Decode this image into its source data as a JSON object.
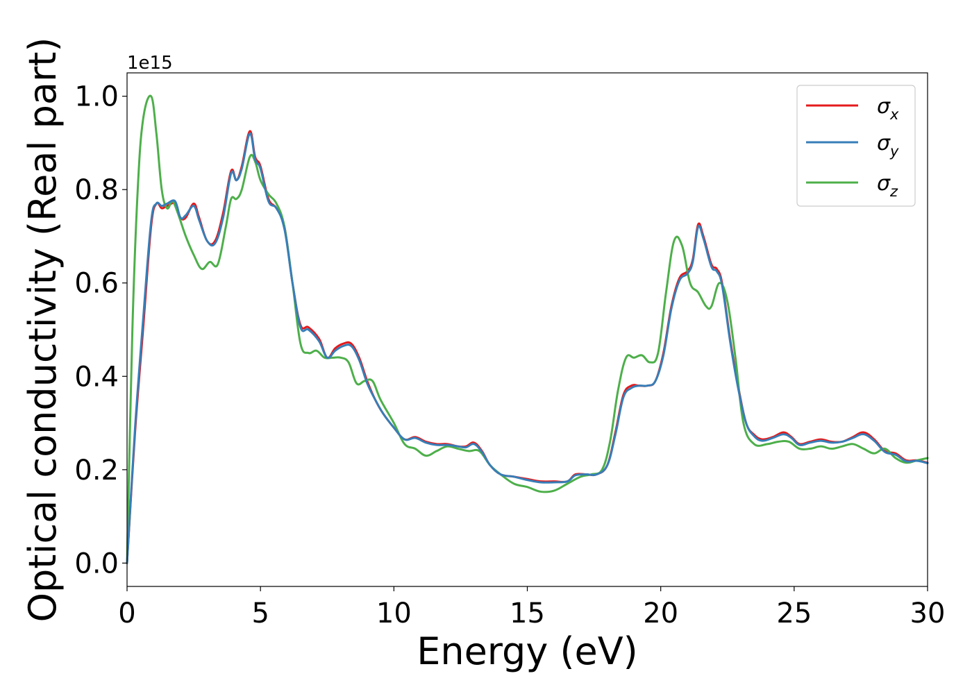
{
  "chart_data": {
    "type": "line",
    "xlabel": "Energy (eV)",
    "ylabel": "Optical conductivity (Real part)",
    "y_offset_label": "1e15",
    "xlim": [
      0,
      30
    ],
    "ylim": [
      -0.05,
      1.05
    ],
    "xticks": [
      0,
      5,
      10,
      15,
      20,
      25,
      30
    ],
    "xtick_labels": [
      "0",
      "5",
      "10",
      "15",
      "20",
      "25",
      "30"
    ],
    "yticks": [
      0.0,
      0.2,
      0.4,
      0.6,
      0.8,
      1.0
    ],
    "ytick_labels": [
      "0.0",
      "0.2",
      "0.4",
      "0.6",
      "0.8",
      "1.0"
    ],
    "grid": false,
    "legend": "top-right",
    "series": [
      {
        "name": "σx",
        "symbol": "σ",
        "subscript": "x",
        "color": "#e41a1c",
        "x": [
          0,
          0.3,
          0.6,
          0.9,
          1.1,
          1.3,
          1.5,
          1.8,
          2.0,
          2.2,
          2.5,
          2.7,
          3.0,
          3.3,
          3.6,
          3.9,
          4.1,
          4.3,
          4.6,
          4.8,
          5.0,
          5.3,
          5.6,
          5.9,
          6.2,
          6.5,
          6.8,
          7.2,
          7.5,
          7.8,
          8.1,
          8.4,
          8.7,
          9.0,
          9.3,
          9.6,
          10.0,
          10.4,
          10.8,
          11.2,
          11.6,
          12.0,
          12.4,
          12.7,
          13.0,
          13.3,
          13.6,
          14.0,
          14.5,
          15.0,
          15.5,
          16.0,
          16.5,
          16.8,
          17.2,
          17.6,
          18.0,
          18.3,
          18.6,
          18.9,
          19.2,
          19.5,
          19.8,
          20.1,
          20.4,
          20.7,
          21.0,
          21.2,
          21.4,
          21.6,
          21.9,
          22.1,
          22.3,
          22.6,
          22.9,
          23.2,
          23.5,
          23.8,
          24.2,
          24.6,
          24.9,
          25.2,
          25.6,
          26.0,
          26.4,
          26.8,
          27.2,
          27.6,
          28.0,
          28.4,
          28.8,
          29.2,
          29.6,
          30.0
        ],
        "values": [
          0.0,
          0.28,
          0.5,
          0.72,
          0.77,
          0.76,
          0.765,
          0.77,
          0.74,
          0.74,
          0.77,
          0.74,
          0.69,
          0.69,
          0.75,
          0.84,
          0.82,
          0.85,
          0.925,
          0.87,
          0.85,
          0.78,
          0.76,
          0.72,
          0.6,
          0.51,
          0.505,
          0.48,
          0.44,
          0.46,
          0.47,
          0.47,
          0.44,
          0.39,
          0.35,
          0.32,
          0.29,
          0.265,
          0.27,
          0.26,
          0.255,
          0.255,
          0.25,
          0.25,
          0.258,
          0.24,
          0.21,
          0.19,
          0.185,
          0.18,
          0.175,
          0.175,
          0.175,
          0.19,
          0.19,
          0.19,
          0.21,
          0.28,
          0.36,
          0.38,
          0.38,
          0.38,
          0.39,
          0.45,
          0.55,
          0.61,
          0.625,
          0.65,
          0.725,
          0.7,
          0.64,
          0.63,
          0.6,
          0.48,
          0.38,
          0.3,
          0.275,
          0.265,
          0.27,
          0.28,
          0.27,
          0.255,
          0.26,
          0.265,
          0.26,
          0.26,
          0.27,
          0.28,
          0.265,
          0.24,
          0.235,
          0.22,
          0.22,
          0.215
        ]
      },
      {
        "name": "σy",
        "symbol": "σ",
        "subscript": "y",
        "color": "#377eb8",
        "x": [
          0,
          0.3,
          0.6,
          0.9,
          1.1,
          1.3,
          1.5,
          1.8,
          2.0,
          2.2,
          2.5,
          2.7,
          3.0,
          3.3,
          3.6,
          3.9,
          4.1,
          4.3,
          4.6,
          4.8,
          5.0,
          5.3,
          5.6,
          5.9,
          6.2,
          6.5,
          6.8,
          7.2,
          7.5,
          7.8,
          8.1,
          8.4,
          8.7,
          9.0,
          9.3,
          9.6,
          10.0,
          10.4,
          10.8,
          11.2,
          11.6,
          12.0,
          12.4,
          12.7,
          13.0,
          13.3,
          13.6,
          14.0,
          14.5,
          15.0,
          15.5,
          16.0,
          16.5,
          16.8,
          17.2,
          17.6,
          18.0,
          18.3,
          18.6,
          18.9,
          19.2,
          19.5,
          19.8,
          20.1,
          20.4,
          20.7,
          21.0,
          21.2,
          21.4,
          21.6,
          21.9,
          22.1,
          22.3,
          22.6,
          22.9,
          23.2,
          23.5,
          23.8,
          24.2,
          24.6,
          24.9,
          25.2,
          25.6,
          26.0,
          26.4,
          26.8,
          27.2,
          27.6,
          28.0,
          28.4,
          28.8,
          29.2,
          29.6,
          30.0
        ],
        "values": [
          0.0,
          0.29,
          0.52,
          0.73,
          0.77,
          0.765,
          0.77,
          0.775,
          0.74,
          0.745,
          0.765,
          0.735,
          0.69,
          0.685,
          0.74,
          0.835,
          0.82,
          0.845,
          0.92,
          0.865,
          0.845,
          0.775,
          0.76,
          0.715,
          0.6,
          0.505,
          0.5,
          0.475,
          0.44,
          0.455,
          0.465,
          0.465,
          0.435,
          0.385,
          0.35,
          0.32,
          0.29,
          0.265,
          0.268,
          0.258,
          0.253,
          0.253,
          0.25,
          0.248,
          0.255,
          0.238,
          0.21,
          0.19,
          0.185,
          0.178,
          0.173,
          0.173,
          0.175,
          0.188,
          0.19,
          0.19,
          0.21,
          0.275,
          0.355,
          0.375,
          0.38,
          0.38,
          0.39,
          0.445,
          0.545,
          0.605,
          0.62,
          0.645,
          0.72,
          0.695,
          0.635,
          0.625,
          0.595,
          0.475,
          0.375,
          0.3,
          0.272,
          0.262,
          0.268,
          0.276,
          0.268,
          0.253,
          0.258,
          0.262,
          0.258,
          0.26,
          0.268,
          0.276,
          0.262,
          0.238,
          0.232,
          0.218,
          0.219,
          0.214
        ]
      },
      {
        "name": "σz",
        "symbol": "σ",
        "subscript": "z",
        "color": "#4daf4a",
        "x": [
          0,
          0.2,
          0.4,
          0.6,
          0.9,
          1.1,
          1.3,
          1.5,
          1.7,
          1.9,
          2.2,
          2.5,
          2.8,
          3.1,
          3.4,
          3.7,
          3.9,
          4.1,
          4.3,
          4.6,
          4.8,
          5.0,
          5.3,
          5.6,
          5.9,
          6.2,
          6.5,
          6.8,
          7.1,
          7.4,
          7.7,
          8.0,
          8.3,
          8.6,
          8.9,
          9.2,
          9.5,
          10.0,
          10.4,
          10.8,
          11.2,
          11.6,
          12.0,
          12.4,
          12.8,
          13.2,
          13.6,
          14.0,
          14.5,
          15.0,
          15.5,
          16.0,
          16.5,
          17.0,
          17.4,
          17.8,
          18.1,
          18.4,
          18.7,
          19.0,
          19.3,
          19.6,
          19.9,
          20.2,
          20.5,
          20.8,
          21.1,
          21.4,
          21.7,
          21.9,
          22.2,
          22.5,
          22.8,
          23.1,
          23.5,
          24.0,
          24.4,
          24.8,
          25.2,
          25.6,
          26.0,
          26.4,
          26.8,
          27.2,
          27.6,
          28.0,
          28.4,
          28.8,
          29.2,
          29.6,
          30.0
        ],
        "values": [
          0.0,
          0.5,
          0.8,
          0.95,
          1.0,
          0.92,
          0.8,
          0.76,
          0.775,
          0.75,
          0.7,
          0.66,
          0.63,
          0.645,
          0.64,
          0.72,
          0.78,
          0.78,
          0.8,
          0.87,
          0.86,
          0.82,
          0.79,
          0.77,
          0.72,
          0.6,
          0.47,
          0.45,
          0.455,
          0.44,
          0.44,
          0.44,
          0.43,
          0.385,
          0.39,
          0.39,
          0.35,
          0.3,
          0.255,
          0.245,
          0.23,
          0.24,
          0.25,
          0.245,
          0.24,
          0.24,
          0.21,
          0.19,
          0.17,
          0.163,
          0.153,
          0.155,
          0.17,
          0.185,
          0.19,
          0.2,
          0.26,
          0.37,
          0.44,
          0.44,
          0.445,
          0.43,
          0.45,
          0.58,
          0.69,
          0.68,
          0.6,
          0.58,
          0.55,
          0.55,
          0.6,
          0.56,
          0.44,
          0.3,
          0.255,
          0.255,
          0.26,
          0.26,
          0.245,
          0.245,
          0.25,
          0.245,
          0.25,
          0.255,
          0.245,
          0.235,
          0.245,
          0.225,
          0.215,
          0.22,
          0.225
        ]
      }
    ]
  }
}
